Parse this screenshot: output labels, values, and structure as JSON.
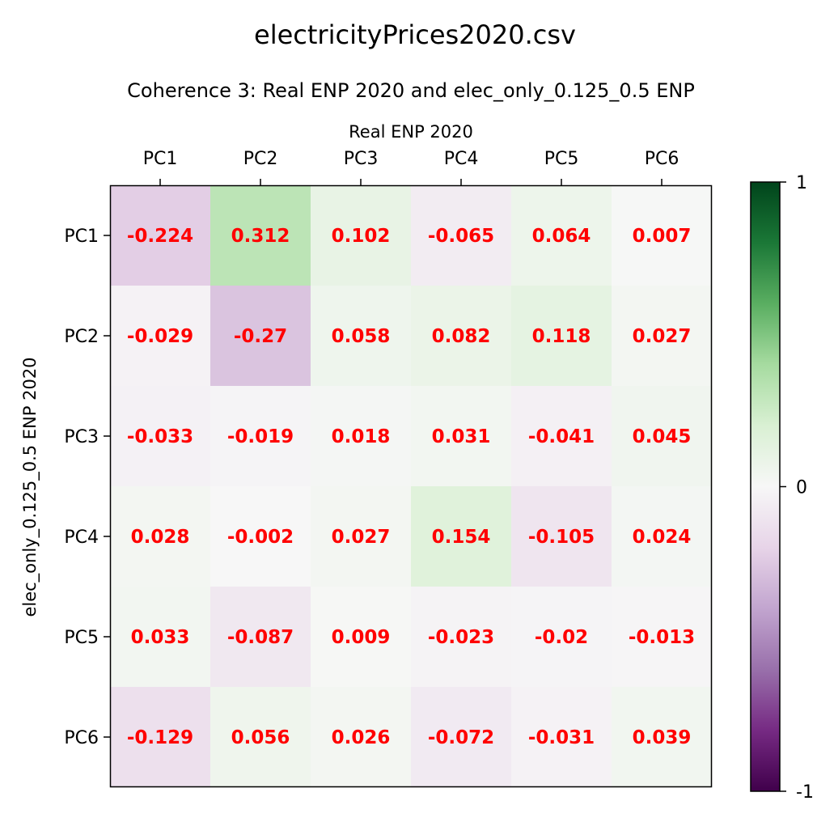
{
  "chart_data": {
    "type": "heatmap",
    "title": "electricityPrices2020.csv",
    "subtitle": "Coherence 3: Real ENP 2020 and elec_only_0.125_0.5 ENP",
    "xlabel": "Real ENP 2020",
    "ylabel": "elec_only_0.125_0.5 ENP 2020",
    "x_categories": [
      "PC1",
      "PC2",
      "PC3",
      "PC4",
      "PC5",
      "PC6"
    ],
    "y_categories": [
      "PC1",
      "PC2",
      "PC3",
      "PC4",
      "PC5",
      "PC6"
    ],
    "values": [
      [
        -0.224,
        0.312,
        0.102,
        -0.065,
        0.064,
        0.007
      ],
      [
        -0.029,
        -0.27,
        0.058,
        0.082,
        0.118,
        0.027
      ],
      [
        -0.033,
        -0.019,
        0.018,
        0.031,
        -0.041,
        0.045
      ],
      [
        0.028,
        -0.002,
        0.027,
        0.154,
        -0.105,
        0.024
      ],
      [
        0.033,
        -0.087,
        0.009,
        -0.023,
        -0.02,
        -0.013
      ],
      [
        -0.129,
        0.056,
        0.026,
        -0.072,
        -0.031,
        0.039
      ]
    ],
    "value_labels": [
      [
        "-0.224",
        "0.312",
        "0.102",
        "-0.065",
        "0.064",
        "0.007"
      ],
      [
        "-0.029",
        "-0.27",
        "0.058",
        "0.082",
        "0.118",
        "0.027"
      ],
      [
        "-0.033",
        "-0.019",
        "0.018",
        "0.031",
        "-0.041",
        "0.045"
      ],
      [
        "0.028",
        "-0.002",
        "0.027",
        "0.154",
        "-0.105",
        "0.024"
      ],
      [
        "0.033",
        "-0.087",
        "0.009",
        "-0.023",
        "-0.02",
        "-0.013"
      ],
      [
        "-0.129",
        "0.056",
        "0.026",
        "-0.072",
        "-0.031",
        "0.039"
      ]
    ],
    "colorbar": {
      "range": [
        -1,
        1
      ],
      "tick_values": [
        1,
        0,
        -1
      ],
      "tick_labels": [
        "1",
        "0",
        "-1"
      ],
      "colormap": "PRGn",
      "colormap_stops": [
        "#40004b",
        "#762a83",
        "#9970ab",
        "#c2a5cf",
        "#e7d4e8",
        "#f7f7f7",
        "#d9f0d3",
        "#a6dba0",
        "#5aae61",
        "#1b7837",
        "#00441b"
      ]
    },
    "annotation_color": "#ff0000",
    "grid": false
  }
}
